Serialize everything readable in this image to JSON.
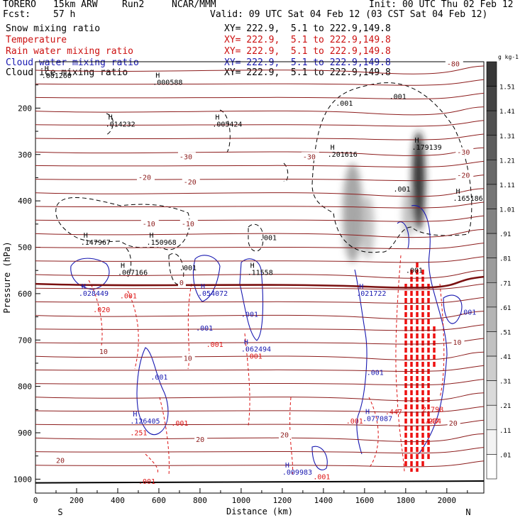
{
  "header": {
    "model": "TORERO",
    "resolution": "15km ARW",
    "run": "Run2",
    "org": "NCAR/MMM",
    "init": "Init: 00 UTC Thu 02 Feb 12",
    "fcst_label": "Fcst:",
    "fcst_hours": "57 h",
    "valid": "Valid: 09 UTC Sat 04 Feb 12 (03 CST Sat 04 Feb 12)"
  },
  "fields": [
    {
      "name": "Snow mixing ratio",
      "xy": "XY= 222.9,  5.1 to 222.9,149.8",
      "color": "#000000"
    },
    {
      "name": "Temperature",
      "xy": "XY= 222.9,  5.1 to 222.9,149.8",
      "color": "#cc1010"
    },
    {
      "name": "Rain water mixing ratio",
      "xy": "XY= 222.9,  5.1 to 222.9,149.8",
      "color": "#cc1010"
    },
    {
      "name": "Cloud water mixing ratio",
      "xy": "XY= 222.9,  5.1 to 222.9,149.8",
      "color": "#1818b0"
    },
    {
      "name": "Cloud ice mixing ratio",
      "xy": "XY= 222.9,  5.1 to 222.9,149.8",
      "color": "#000000"
    }
  ],
  "chart_data": {
    "type": "contour-cross-section",
    "xlabel": "Distance (km)",
    "ylabel": "Pressure (hPa)",
    "xlim": [
      0,
      2180
    ],
    "ylim": [
      1030,
      100
    ],
    "x_ticks": [
      0,
      200,
      400,
      600,
      800,
      1000,
      1200,
      1400,
      1600,
      1800,
      2000
    ],
    "y_ticks": [
      200,
      300,
      400,
      500,
      600,
      700,
      800,
      900,
      1000
    ],
    "left_end": "S",
    "right_end": "N",
    "colorbar": {
      "unit": "g kg-1",
      "levels": [
        "1.51",
        "1.41",
        "1.31",
        "1.21",
        "1.11",
        "1.01",
        ".91",
        ".81",
        ".71",
        ".61",
        ".51",
        ".41",
        ".31",
        ".21",
        ".11",
        ".01"
      ]
    },
    "temperature_labels": [
      {
        "x": 2000,
        "p": 110,
        "text": "-80"
      },
      {
        "x": 700,
        "p": 310,
        "text": "-30"
      },
      {
        "x": 1300,
        "p": 310,
        "text": "-30"
      },
      {
        "x": 2050,
        "p": 300,
        "text": "-30"
      },
      {
        "x": 500,
        "p": 355,
        "text": "-20"
      },
      {
        "x": 720,
        "p": 365,
        "text": "-20"
      },
      {
        "x": 2050,
        "p": 350,
        "text": "-20"
      },
      {
        "x": 520,
        "p": 455,
        "text": "-10"
      },
      {
        "x": 710,
        "p": 455,
        "text": "-10"
      },
      {
        "x": 700,
        "p": 582,
        "text": "0"
      },
      {
        "x": 310,
        "p": 730,
        "text": "10"
      },
      {
        "x": 720,
        "p": 745,
        "text": "10"
      },
      {
        "x": 2030,
        "p": 710,
        "text": "10"
      },
      {
        "x": 2010,
        "p": 885,
        "text": "20"
      },
      {
        "x": 780,
        "p": 920,
        "text": "20"
      },
      {
        "x": 1190,
        "p": 910,
        "text": "20"
      },
      {
        "x": 100,
        "p": 965,
        "text": "20"
      }
    ],
    "snow_maxima": [
      {
        "x": 30,
        "p": 135,
        "text": ".001260"
      },
      {
        "x": 570,
        "p": 150,
        "text": ".000588"
      },
      {
        "x": 340,
        "p": 240,
        "text": ".014232"
      },
      {
        "x": 860,
        "p": 240,
        "text": ".005424"
      },
      {
        "x": 1420,
        "p": 305,
        "text": ".201616"
      },
      {
        "x": 1830,
        "p": 290,
        "text": ".179139"
      },
      {
        "x": 2030,
        "p": 400,
        "text": ".165186"
      },
      {
        "x": 220,
        "p": 495,
        "text": ".147967"
      },
      {
        "x": 540,
        "p": 495,
        "text": ".150968"
      },
      {
        "x": 400,
        "p": 560,
        "text": ".067166"
      },
      {
        "x": 1030,
        "p": 560,
        "text": ".11558"
      }
    ],
    "snow_labels": [
      {
        "x": 1460,
        "p": 195,
        "text": ".001"
      },
      {
        "x": 1720,
        "p": 180,
        "text": ".001"
      },
      {
        "x": 1740,
        "p": 380,
        "text": ".001"
      },
      {
        "x": 1090,
        "p": 485,
        "text": ".001"
      },
      {
        "x": 700,
        "p": 550,
        "text": ".001"
      },
      {
        "x": 1800,
        "p": 555,
        "text": ".001"
      }
    ],
    "cloud_water_maxima": [
      {
        "x": 210,
        "p": 605,
        "text": ".028449"
      },
      {
        "x": 790,
        "p": 605,
        "text": ".054072"
      },
      {
        "x": 1560,
        "p": 605,
        "text": ".021722"
      },
      {
        "x": 1000,
        "p": 725,
        "text": ".062494"
      },
      {
        "x": 460,
        "p": 880,
        "text": ".126405"
      },
      {
        "x": 1590,
        "p": 875,
        "text": ".077087"
      },
      {
        "x": 1200,
        "p": 990,
        "text": ".009983"
      }
    ],
    "cloud_water_labels": [
      {
        "x": 1000,
        "p": 650,
        "text": ".001"
      },
      {
        "x": 780,
        "p": 680,
        "text": ".001"
      },
      {
        "x": 1610,
        "p": 775,
        "text": ".001"
      },
      {
        "x": 560,
        "p": 785,
        "text": ".001"
      },
      {
        "x": 2060,
        "p": 645,
        "text": ".001"
      }
    ],
    "rain_maxima": [
      {
        "x": 460,
        "p": 905,
        "text": ".251"
      },
      {
        "x": 1880,
        "p": 855,
        "text": "2.798"
      },
      {
        "x": 1880,
        "p": 880,
        "text": ".447"
      },
      {
        "x": 1890,
        "p": 880,
        "text": ".234"
      }
    ],
    "rain_labels": [
      {
        "x": 410,
        "p": 610,
        "text": ".001"
      },
      {
        "x": 280,
        "p": 640,
        "text": ".020"
      },
      {
        "x": 830,
        "p": 715,
        "text": ".001"
      },
      {
        "x": 1020,
        "p": 740,
        "text": ".001"
      },
      {
        "x": 1700,
        "p": 860,
        "text": ".447"
      },
      {
        "x": 1510,
        "p": 880,
        "text": ".001"
      },
      {
        "x": 660,
        "p": 885,
        "text": ".001"
      },
      {
        "x": 1350,
        "p": 1000,
        "text": ".001"
      },
      {
        "x": 500,
        "p": 1010,
        "text": ".001"
      }
    ]
  }
}
